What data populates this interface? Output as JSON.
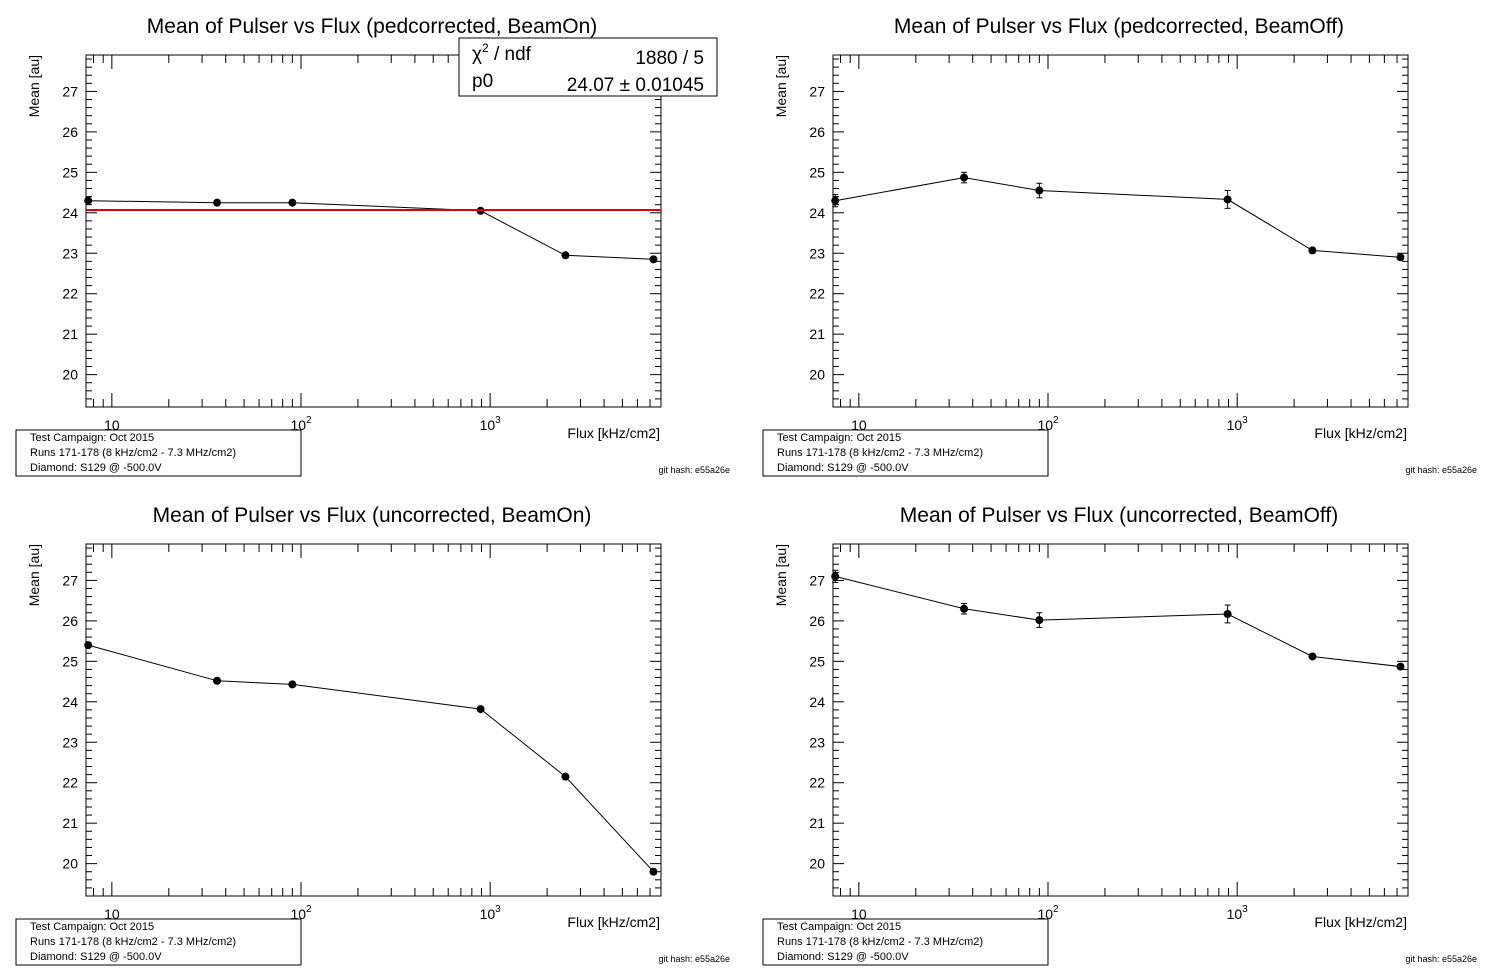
{
  "xlabel": "Flux [kHz/cm2]",
  "ylabel": "Mean [au]",
  "info_lines": [
    "Test Campaign: Oct 2015",
    "Runs 171-178 (8 kHz/cm2 - 7.3 MHz/cm2)",
    "Diamond: S129 @ -500.0V"
  ],
  "git_hash": "git hash: e55a26e",
  "x_ticks": [
    {
      "base": "10",
      "exp": ""
    },
    {
      "base": "10",
      "exp": "2"
    },
    {
      "base": "10",
      "exp": "3"
    }
  ],
  "y_ticks": [
    "20",
    "21",
    "22",
    "23",
    "24",
    "25",
    "26",
    "27"
  ],
  "colors": {
    "data": "#000000",
    "fit": "#e00000"
  },
  "chart_data": [
    {
      "type": "scatter",
      "title": "Mean of Pulser vs Flux (pedcorrected, BeamOn)",
      "xscale": "log",
      "xlim": [
        7.3,
        8000
      ],
      "ylim": [
        19.2,
        27.9
      ],
      "x": [
        7.5,
        36,
        90,
        890,
        2500,
        7300
      ],
      "y": [
        24.3,
        24.25,
        24.25,
        24.05,
        22.95,
        22.85
      ],
      "yerr": [
        0.04,
        0.04,
        0.04,
        0.05,
        0.04,
        0.04
      ],
      "fit": {
        "value": 24.07,
        "stats": [
          {
            "label": "χ² / ndf",
            "value": "1880 / 5"
          },
          {
            "label": "p0",
            "value": "24.07 ± 0.01045"
          }
        ]
      }
    },
    {
      "type": "scatter",
      "title": "Mean of Pulser vs Flux (pedcorrected, BeamOff)",
      "xscale": "log",
      "xlim": [
        7.3,
        8000
      ],
      "ylim": [
        19.2,
        27.9
      ],
      "x": [
        7.5,
        36,
        90,
        890,
        2500,
        7300
      ],
      "y": [
        24.3,
        24.87,
        24.55,
        24.33,
        23.07,
        22.9
      ],
      "yerr": [
        0.15,
        0.13,
        0.18,
        0.22,
        0.05,
        0.05
      ]
    },
    {
      "type": "scatter",
      "title": "Mean of Pulser vs Flux (uncorrected, BeamOn)",
      "xscale": "log",
      "xlim": [
        7.3,
        8000
      ],
      "ylim": [
        19.2,
        27.9
      ],
      "x": [
        7.5,
        36,
        90,
        890,
        2500,
        7300
      ],
      "y": [
        25.4,
        24.52,
        24.43,
        23.82,
        22.15,
        19.8
      ],
      "yerr": [
        0.05,
        0.04,
        0.04,
        0.04,
        0.04,
        0.05
      ]
    },
    {
      "type": "scatter",
      "title": "Mean of Pulser vs Flux (uncorrected, BeamOff)",
      "xscale": "log",
      "xlim": [
        7.3,
        8000
      ],
      "ylim": [
        19.2,
        27.9
      ],
      "x": [
        7.5,
        36,
        90,
        890,
        2500,
        7300
      ],
      "y": [
        27.1,
        26.3,
        26.02,
        26.17,
        25.12,
        24.87
      ],
      "yerr": [
        0.15,
        0.13,
        0.18,
        0.22,
        0.05,
        0.05
      ]
    }
  ]
}
